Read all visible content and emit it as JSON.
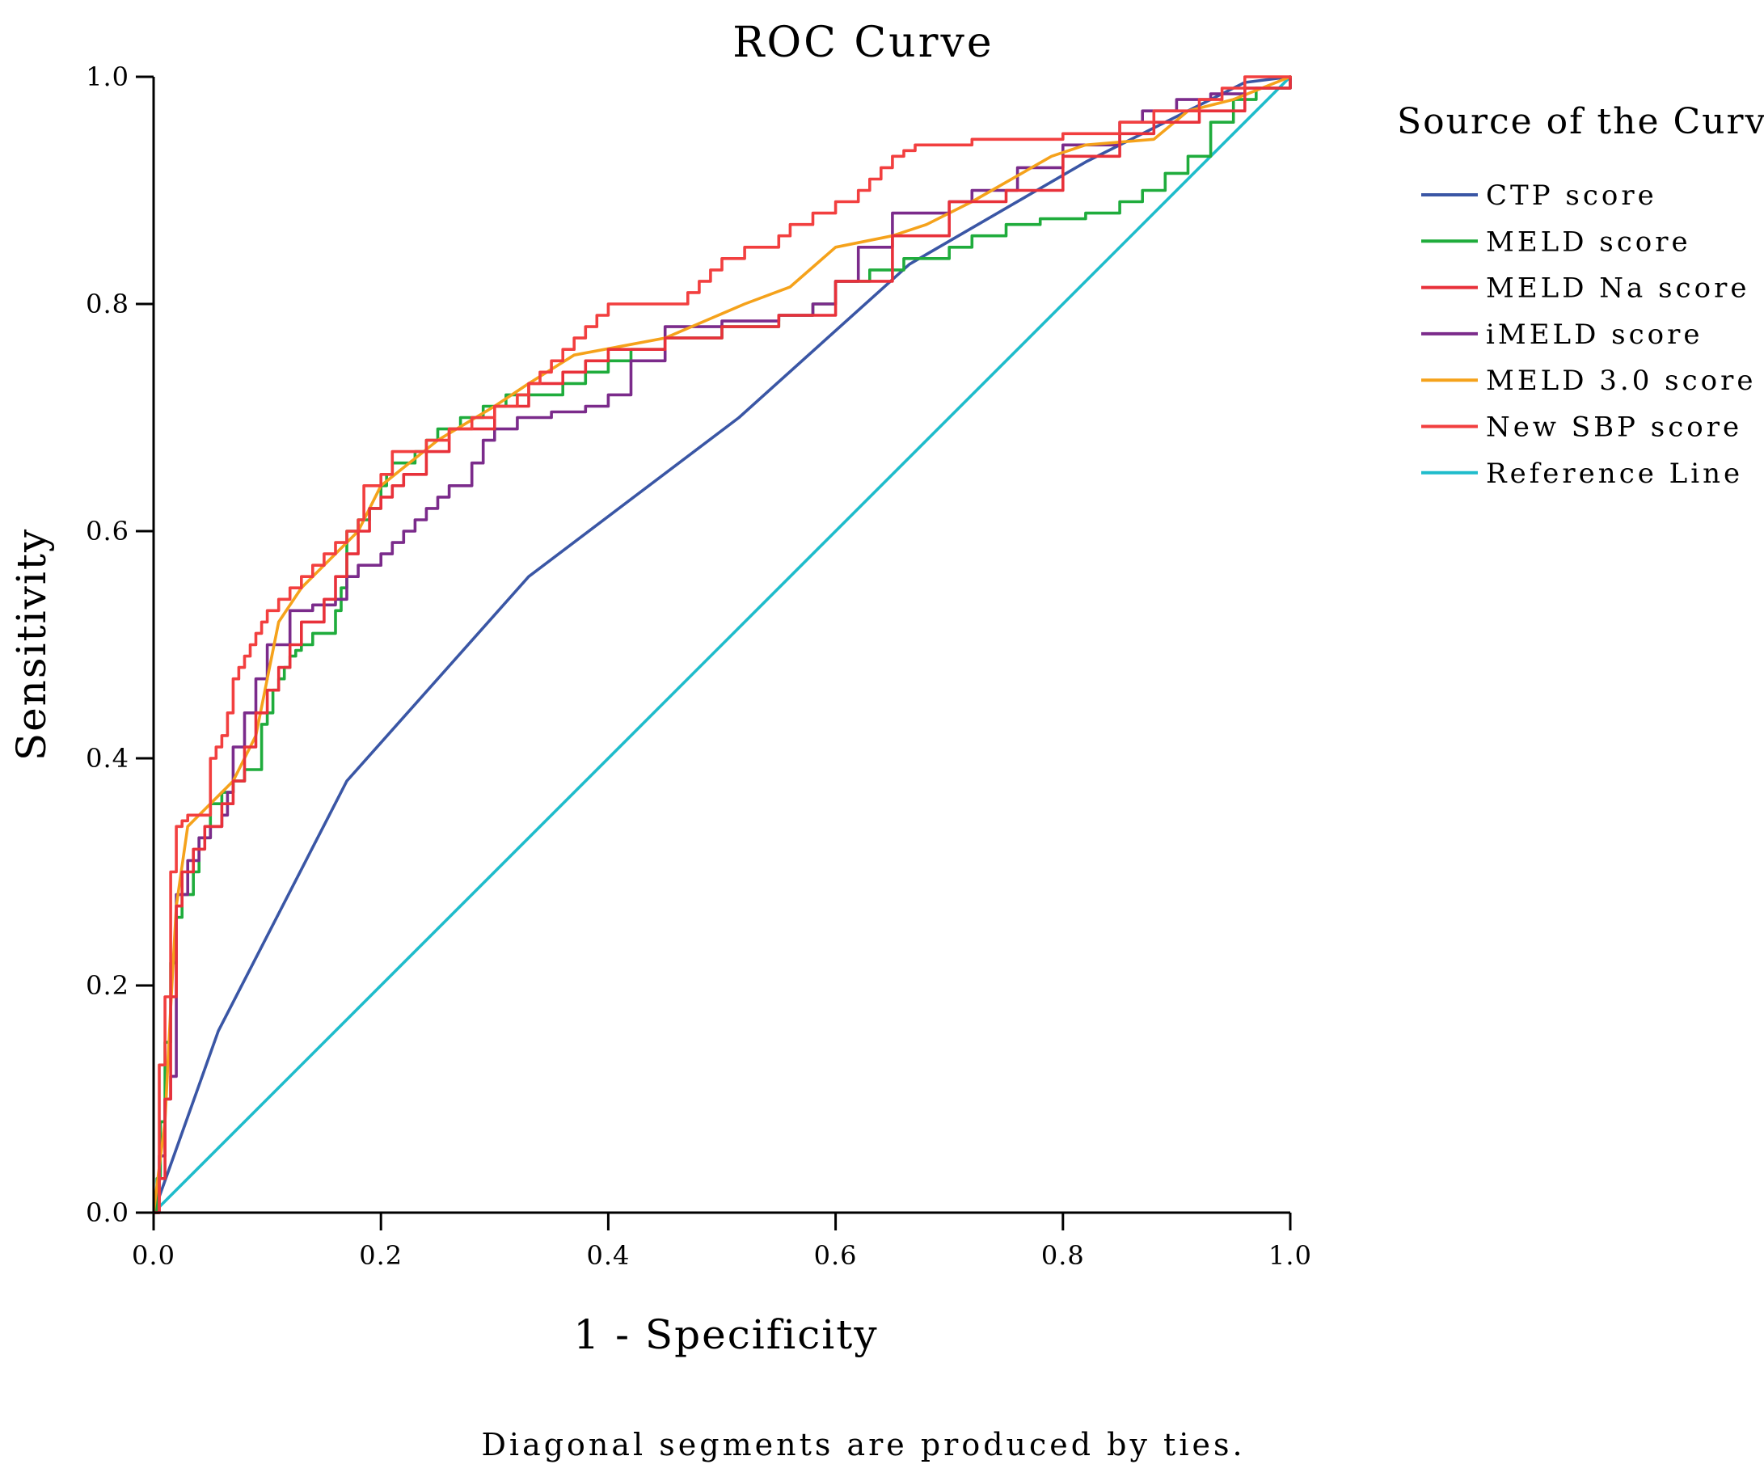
{
  "chart_data": {
    "type": "line",
    "title": "ROC Curve",
    "xlabel": "1 - Specificity",
    "ylabel": "Sensitivity",
    "xlim": [
      0,
      1
    ],
    "ylim": [
      0,
      1
    ],
    "xticks": [
      "0.0",
      "0.2",
      "0.4",
      "0.6",
      "0.8",
      "1.0"
    ],
    "yticks": [
      "0.0",
      "0.2",
      "0.4",
      "0.6",
      "0.8",
      "1.0"
    ],
    "grid": false,
    "legend_title": "Source of the Curve",
    "legend_position": "right",
    "footnote": "Diagonal segments are produced by ties.",
    "series": [
      {
        "name": "CTP score",
        "color": "#3a56a5",
        "step": false,
        "x": [
          0,
          0.057,
          0.17,
          0.33,
          0.515,
          0.665,
          0.82,
          0.96,
          1.0
        ],
        "y": [
          0,
          0.16,
          0.38,
          0.56,
          0.7,
          0.835,
          0.925,
          0.995,
          1.0
        ]
      },
      {
        "name": "MELD score",
        "color": "#1fac3c",
        "step": true,
        "x": [
          0,
          0.003,
          0.006,
          0.01,
          0.015,
          0.02,
          0.025,
          0.035,
          0.04,
          0.05,
          0.06,
          0.07,
          0.08,
          0.095,
          0.1,
          0.105,
          0.11,
          0.115,
          0.12,
          0.125,
          0.13,
          0.14,
          0.15,
          0.16,
          0.165,
          0.17,
          0.18,
          0.19,
          0.2,
          0.205,
          0.21,
          0.22,
          0.23,
          0.24,
          0.25,
          0.27,
          0.29,
          0.31,
          0.33,
          0.36,
          0.38,
          0.4,
          0.42,
          0.45,
          0.5,
          0.55,
          0.58,
          0.6,
          0.63,
          0.66,
          0.7,
          0.72,
          0.75,
          0.78,
          0.82,
          0.85,
          0.87,
          0.89,
          0.91,
          0.93,
          0.95,
          0.97,
          1.0
        ],
        "y": [
          0,
          0.03,
          0.08,
          0.15,
          0.22,
          0.26,
          0.28,
          0.3,
          0.33,
          0.36,
          0.37,
          0.38,
          0.39,
          0.43,
          0.44,
          0.46,
          0.47,
          0.48,
          0.49,
          0.495,
          0.5,
          0.51,
          0.51,
          0.53,
          0.55,
          0.6,
          0.61,
          0.62,
          0.64,
          0.65,
          0.66,
          0.66,
          0.67,
          0.68,
          0.69,
          0.7,
          0.71,
          0.72,
          0.72,
          0.73,
          0.74,
          0.75,
          0.76,
          0.77,
          0.78,
          0.79,
          0.8,
          0.82,
          0.83,
          0.84,
          0.85,
          0.86,
          0.87,
          0.875,
          0.88,
          0.89,
          0.9,
          0.915,
          0.93,
          0.96,
          0.98,
          0.99,
          1.0
        ]
      },
      {
        "name": "MELD Na score",
        "color": "#e8313a",
        "step": true,
        "x": [
          0,
          0.005,
          0.01,
          0.015,
          0.02,
          0.025,
          0.035,
          0.045,
          0.06,
          0.07,
          0.08,
          0.09,
          0.1,
          0.11,
          0.12,
          0.13,
          0.15,
          0.16,
          0.17,
          0.18,
          0.19,
          0.2,
          0.21,
          0.22,
          0.24,
          0.26,
          0.3,
          0.33,
          0.36,
          0.38,
          0.4,
          0.45,
          0.5,
          0.55,
          0.6,
          0.65,
          0.7,
          0.75,
          0.8,
          0.85,
          0.88,
          0.92,
          0.96,
          1.0
        ],
        "y": [
          0,
          0.03,
          0.1,
          0.19,
          0.27,
          0.3,
          0.32,
          0.34,
          0.36,
          0.38,
          0.41,
          0.44,
          0.46,
          0.48,
          0.5,
          0.52,
          0.54,
          0.56,
          0.58,
          0.6,
          0.62,
          0.63,
          0.64,
          0.65,
          0.67,
          0.69,
          0.71,
          0.73,
          0.74,
          0.75,
          0.76,
          0.77,
          0.78,
          0.79,
          0.82,
          0.86,
          0.89,
          0.9,
          0.93,
          0.95,
          0.96,
          0.97,
          0.99,
          1.0
        ]
      },
      {
        "name": "iMELD score",
        "color": "#7b2b8b",
        "step": true,
        "x": [
          0,
          0.005,
          0.01,
          0.015,
          0.02,
          0.03,
          0.04,
          0.05,
          0.06,
          0.065,
          0.07,
          0.08,
          0.09,
          0.1,
          0.12,
          0.14,
          0.16,
          0.17,
          0.18,
          0.2,
          0.21,
          0.22,
          0.23,
          0.24,
          0.25,
          0.26,
          0.28,
          0.29,
          0.3,
          0.32,
          0.35,
          0.38,
          0.4,
          0.42,
          0.45,
          0.5,
          0.55,
          0.58,
          0.6,
          0.62,
          0.65,
          0.7,
          0.72,
          0.76,
          0.8,
          0.85,
          0.87,
          0.9,
          0.93,
          0.96,
          1.0
        ],
        "y": [
          0,
          0.05,
          0.1,
          0.12,
          0.28,
          0.31,
          0.33,
          0.34,
          0.35,
          0.37,
          0.41,
          0.44,
          0.47,
          0.5,
          0.53,
          0.535,
          0.54,
          0.56,
          0.57,
          0.58,
          0.59,
          0.6,
          0.61,
          0.62,
          0.63,
          0.64,
          0.66,
          0.68,
          0.69,
          0.7,
          0.705,
          0.71,
          0.72,
          0.75,
          0.78,
          0.785,
          0.79,
          0.8,
          0.82,
          0.85,
          0.88,
          0.89,
          0.9,
          0.92,
          0.94,
          0.96,
          0.97,
          0.98,
          0.985,
          0.99,
          1.0
        ]
      },
      {
        "name": "MELD 3.0 score",
        "color": "#f5a21b",
        "step": false,
        "x": [
          0,
          0.005,
          0.01,
          0.015,
          0.02,
          0.03,
          0.05,
          0.07,
          0.09,
          0.11,
          0.13,
          0.18,
          0.2,
          0.25,
          0.3,
          0.33,
          0.37,
          0.45,
          0.52,
          0.56,
          0.6,
          0.65,
          0.68,
          0.72,
          0.79,
          0.82,
          0.88,
          0.91,
          0.95,
          1.0
        ],
        "y": [
          0,
          0.04,
          0.08,
          0.18,
          0.27,
          0.34,
          0.36,
          0.38,
          0.42,
          0.52,
          0.55,
          0.6,
          0.64,
          0.68,
          0.71,
          0.73,
          0.755,
          0.77,
          0.8,
          0.815,
          0.85,
          0.86,
          0.87,
          0.89,
          0.93,
          0.94,
          0.945,
          0.97,
          0.98,
          1.0
        ]
      },
      {
        "name": "New SBP score",
        "color": "#f23f3f",
        "step": true,
        "x": [
          0,
          0.005,
          0.01,
          0.015,
          0.02,
          0.025,
          0.03,
          0.04,
          0.045,
          0.05,
          0.055,
          0.06,
          0.065,
          0.07,
          0.075,
          0.08,
          0.085,
          0.09,
          0.095,
          0.1,
          0.11,
          0.12,
          0.13,
          0.14,
          0.15,
          0.16,
          0.17,
          0.18,
          0.185,
          0.2,
          0.21,
          0.22,
          0.24,
          0.26,
          0.28,
          0.3,
          0.32,
          0.33,
          0.34,
          0.35,
          0.36,
          0.37,
          0.38,
          0.39,
          0.4,
          0.47,
          0.48,
          0.49,
          0.5,
          0.52,
          0.55,
          0.56,
          0.58,
          0.6,
          0.62,
          0.63,
          0.64,
          0.65,
          0.66,
          0.67,
          0.69,
          0.72,
          0.75,
          0.8,
          0.85,
          0.88,
          0.92,
          0.94,
          0.96,
          1.0
        ],
        "y": [
          0,
          0.13,
          0.19,
          0.3,
          0.34,
          0.345,
          0.35,
          0.35,
          0.35,
          0.4,
          0.41,
          0.42,
          0.44,
          0.47,
          0.48,
          0.49,
          0.5,
          0.51,
          0.52,
          0.53,
          0.54,
          0.55,
          0.56,
          0.57,
          0.58,
          0.59,
          0.6,
          0.61,
          0.64,
          0.65,
          0.67,
          0.67,
          0.68,
          0.69,
          0.7,
          0.71,
          0.72,
          0.73,
          0.74,
          0.75,
          0.76,
          0.77,
          0.78,
          0.79,
          0.8,
          0.81,
          0.82,
          0.83,
          0.84,
          0.85,
          0.86,
          0.87,
          0.88,
          0.89,
          0.9,
          0.91,
          0.92,
          0.93,
          0.935,
          0.94,
          0.94,
          0.945,
          0.945,
          0.95,
          0.96,
          0.97,
          0.98,
          0.99,
          1.0,
          1.0
        ]
      },
      {
        "name": "Reference Line",
        "color": "#1fbccb",
        "step": false,
        "x": [
          0,
          1
        ],
        "y": [
          0,
          1
        ]
      }
    ]
  }
}
